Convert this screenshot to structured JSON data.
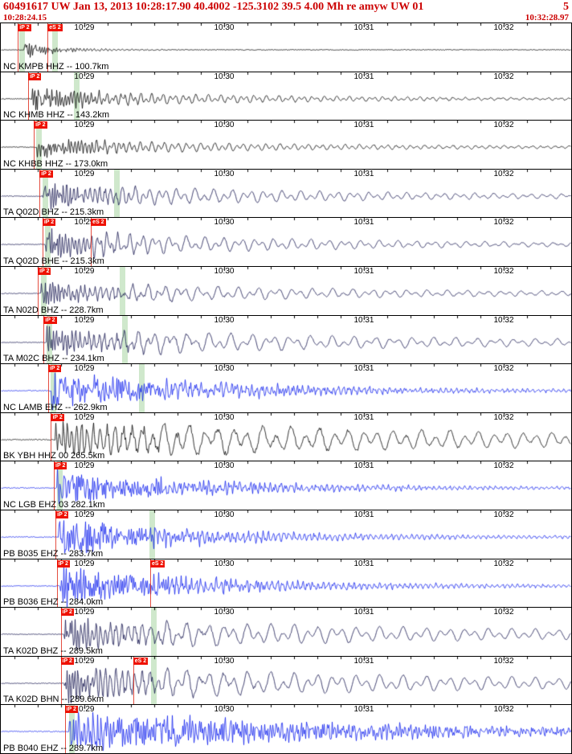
{
  "header": {
    "title": "60491617 UW Jan 13, 2013 10:28:17.90   40.4002 -125.3102 39.5 4.00 Mh re amyw UW 01",
    "page": "5",
    "start_time": "10:28:24.15",
    "end_time": "10:32:28.97"
  },
  "colors": {
    "header_text": "#cc0000",
    "flag_red": "#ee1100",
    "pickline_red": "#dd2211",
    "band_green": "#a8d5a2",
    "trace_black": "#000000",
    "trace_navy": "#15154f",
    "trace_blue": "#1122ee"
  },
  "time_axis": {
    "labels": [
      "10:29",
      "10:30",
      "10:31",
      "10:32"
    ],
    "fracs": [
      0.1464,
      0.3915,
      0.6366,
      0.8817
    ],
    "minor_first_frac": 0.0239,
    "minor_step_frac": 0.040849
  },
  "traces": [
    {
      "label": "NC KMPB HHZ -- 100.7km",
      "color": "#000000",
      "flags": [
        {
          "text": "iP 2",
          "frac": 0.03
        },
        {
          "text": "eS 2",
          "frac": 0.082
        }
      ],
      "bands": [
        0.033,
        0.09
      ],
      "wf": {
        "seed": 11,
        "p": 0.04,
        "amp": 9,
        "dh": 0.04,
        "dl": 0.09,
        "lam0": 2.2,
        "lam1": 7,
        "pre": 0.5,
        "nw": 0.9,
        "lw": 0.5
      }
    },
    {
      "label": "NC KHMB HHZ -- 143.2km",
      "color": "#000000",
      "flags": [
        {
          "text": "iP 2",
          "frac": 0.048
        }
      ],
      "bands": [
        0.128
      ],
      "wf": {
        "seed": 22,
        "p": 0.053,
        "amp": 13,
        "dh": 0.07,
        "dl": 0.45,
        "lam0": 2.2,
        "lam1": 8,
        "pre": 0.5,
        "nw": 0.9,
        "lw": 0.5,
        "s": 0.128,
        "samp": 4,
        "ds": 0.5
      }
    },
    {
      "label": "NC KHBB HHZ -- 173.0km",
      "color": "#000000",
      "flags": [
        {
          "text": "iP 2",
          "frac": 0.058
        }
      ],
      "bands": [
        0.062
      ],
      "wf": {
        "seed": 33,
        "p": 0.063,
        "amp": 13,
        "dh": 0.06,
        "dl": 0.5,
        "lam0": 2.2,
        "lam1": 9,
        "pre": 0.5,
        "nw": 0.9,
        "lw": 0.5,
        "s": 0.16,
        "samp": 3,
        "ds": 0.5
      }
    },
    {
      "label": "TA Q02D BHZ -- 215.3km",
      "color": "#15154f",
      "flags": [
        {
          "text": "iP 2",
          "frac": 0.068
        }
      ],
      "bands": [
        0.073,
        0.198
      ],
      "wf": {
        "seed": 44,
        "p": 0.073,
        "amp": 15,
        "dh": 0.09,
        "dl": 0.55,
        "lam0": 2.5,
        "lam1": 12,
        "pre": 0.5,
        "nw": 0.85,
        "lw": 0.6,
        "s": 0.2,
        "samp": 6,
        "ds": 0.5
      }
    },
    {
      "label": "TA Q02D BHE -- 215.3km",
      "color": "#15154f",
      "flags": [
        {
          "text": "iP 2",
          "frac": 0.073
        },
        {
          "text": "eS 2",
          "frac": 0.158
        }
      ],
      "bands": [
        0.078
      ],
      "wf": {
        "seed": 55,
        "p": 0.077,
        "amp": 15,
        "dh": 0.08,
        "dl": 0.5,
        "lam0": 2.5,
        "lam1": 12,
        "pre": 0.5,
        "nw": 0.85,
        "lw": 0.6,
        "s": 0.16,
        "samp": 7,
        "ds": 0.5
      }
    },
    {
      "label": "TA N02D BHZ -- 228.7km",
      "color": "#15154f",
      "flags": [
        {
          "text": "iP 2",
          "frac": 0.065
        }
      ],
      "bands": [
        0.07,
        0.208
      ],
      "wf": {
        "seed": 66,
        "p": 0.07,
        "amp": 13,
        "dh": 0.1,
        "dl": 0.6,
        "lam0": 2.5,
        "lam1": 13,
        "pre": 0.5,
        "nw": 0.85,
        "lw": 0.6,
        "s": 0.21,
        "samp": 6,
        "ds": 0.5
      }
    },
    {
      "label": "TA M02C BHZ -- 234.1km",
      "color": "#15154f",
      "flags": [
        {
          "text": "iP 2",
          "frac": 0.075
        }
      ],
      "bands": [
        0.08,
        0.213
      ],
      "wf": {
        "seed": 77,
        "p": 0.08,
        "amp": 15,
        "dh": 0.11,
        "dl": 0.7,
        "lam0": 2.5,
        "lam1": 14,
        "pre": 0.5,
        "nw": 0.85,
        "lw": 0.6,
        "s": 0.215,
        "samp": 8,
        "ds": 0.6
      }
    },
    {
      "label": "NC LAMB EHZ -- 262.9km",
      "color": "#1122ee",
      "flags": [
        {
          "text": "iP 2",
          "frac": 0.083
        }
      ],
      "bands": [
        0.088,
        0.242
      ],
      "wf": {
        "seed": 88,
        "p": 0.088,
        "amp": 21,
        "dh": 0.22,
        "dl": 0.4,
        "lam0": 1.6,
        "lam1": 3.5,
        "pre": 0.6,
        "nw": 1.0,
        "lw": 0.3,
        "s": 0.245,
        "samp": 6,
        "ds": 0.5
      }
    },
    {
      "label": "BK YBH HHZ 00 265.5km",
      "color": "#000000",
      "flags": [
        {
          "text": "iP 2",
          "frac": 0.088
        }
      ],
      "bands": [],
      "wf": {
        "seed": 99,
        "p": 0.093,
        "amp": 17,
        "dh": 0.25,
        "dl": 1.0,
        "lam0": 4,
        "lam1": 18,
        "pre": 0.7,
        "nw": 0.5,
        "lw": 0.9,
        "s": 0.25,
        "samp": 8,
        "ds": 0.8
      }
    },
    {
      "label": "NC LGB EHZ 03 282.1km",
      "color": "#1122ee",
      "flags": [
        {
          "text": "iP 2",
          "frac": 0.093
        }
      ],
      "bands": [
        0.098
      ],
      "wf": {
        "seed": 110,
        "p": 0.098,
        "amp": 19,
        "dh": 0.2,
        "dl": 0.35,
        "lam0": 1.6,
        "lam1": 3.5,
        "pre": 0.6,
        "nw": 1.0,
        "lw": 0.3,
        "s": 0.26,
        "samp": 5,
        "ds": 0.5
      }
    },
    {
      "label": "PB B035 EHZ -- 283.7km",
      "color": "#1122ee",
      "flags": [
        {
          "text": "iP 2",
          "frac": 0.096
        }
      ],
      "bands": [
        0.26
      ],
      "wf": {
        "seed": 121,
        "p": 0.101,
        "amp": 21,
        "dh": 0.16,
        "dl": 0.3,
        "lam0": 1.6,
        "lam1": 3.5,
        "pre": 0.6,
        "nw": 1.0,
        "lw": 0.3,
        "s": 0.26,
        "samp": 6,
        "ds": 0.5
      }
    },
    {
      "label": "PB B036 EHZ -- 284.0km",
      "color": "#1122ee",
      "flags": [
        {
          "text": "iP 2",
          "frac": 0.098
        },
        {
          "text": "eS 2",
          "frac": 0.262
        }
      ],
      "bands": [],
      "wf": {
        "seed": 132,
        "p": 0.103,
        "amp": 22,
        "dh": 0.18,
        "dl": 0.35,
        "lam0": 1.6,
        "lam1": 3.5,
        "pre": 0.6,
        "nw": 1.0,
        "lw": 0.3,
        "s": 0.262,
        "samp": 6,
        "ds": 0.5
      }
    },
    {
      "label": "TA K02D BHZ -- 289.5km",
      "color": "#15154f",
      "flags": [
        {
          "text": "iP 2",
          "frac": 0.105
        }
      ],
      "bands": [
        0.264
      ],
      "wf": {
        "seed": 143,
        "p": 0.11,
        "amp": 17,
        "dh": 0.13,
        "dl": 0.8,
        "lam0": 2.5,
        "lam1": 15,
        "pre": 0.5,
        "nw": 0.8,
        "lw": 0.65,
        "s": 0.264,
        "samp": 8,
        "ds": 0.7
      }
    },
    {
      "label": "TA K02D BHN -- 289.6km",
      "color": "#15154f",
      "flags": [
        {
          "text": "iP 2",
          "frac": 0.105
        },
        {
          "text": "eS 2",
          "frac": 0.232
        }
      ],
      "bands": [
        0.264
      ],
      "wf": {
        "seed": 154,
        "p": 0.11,
        "amp": 19,
        "dh": 0.13,
        "dl": 0.8,
        "lam0": 2.5,
        "lam1": 15,
        "pre": 0.5,
        "nw": 0.8,
        "lw": 0.65,
        "s": 0.264,
        "samp": 9,
        "ds": 0.7
      }
    },
    {
      "label": "PB B040 EHZ -- 289.7km",
      "color": "#1122ee",
      "flags": [
        {
          "text": "iP 2",
          "frac": 0.112
        }
      ],
      "bands": [
        0.12
      ],
      "wf": {
        "seed": 165,
        "p": 0.119,
        "amp": 22,
        "dh": 0.45,
        "dl": 0.6,
        "lam0": 1.6,
        "lam1": 3.5,
        "pre": 0.6,
        "nw": 1.0,
        "lw": 0.3,
        "s": 0.27,
        "samp": 5,
        "ds": 0.6
      }
    }
  ]
}
